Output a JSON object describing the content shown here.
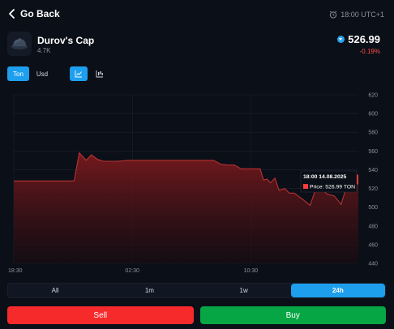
{
  "header": {
    "back_label": "Go Back",
    "back_icon": "chevron-left-icon",
    "time_label": "18:00 UTC+1",
    "time_icon": "alarm-clock-icon"
  },
  "asset": {
    "name": "Durov's Cap",
    "count": "4.7K",
    "icon": "cap-icon",
    "price": "526.99",
    "currency_icon": "ton-coin-icon",
    "change": "-0.19%"
  },
  "currency_toggle": [
    {
      "label": "Ton",
      "active": true
    },
    {
      "label": "Usd",
      "active": false
    }
  ],
  "chart_type_toggle": [
    {
      "icon": "line-chart-icon",
      "active": true
    },
    {
      "icon": "candlestick-chart-icon",
      "active": false
    }
  ],
  "chart_data": {
    "type": "area",
    "x_tick_labels": [
      "18:30",
      "02:30",
      "10:30"
    ],
    "y_tick_labels": [
      "620",
      "600",
      "580",
      "560",
      "540",
      "520",
      "500",
      "480",
      "460",
      "440"
    ],
    "ylim": [
      440,
      620
    ],
    "xlim": [
      0,
      100
    ],
    "x_ticks": [
      0,
      34.4,
      68.8
    ],
    "x": [
      0,
      6,
      12,
      17.5,
      19,
      21,
      22.5,
      24.3,
      26,
      28,
      30,
      33,
      36,
      40,
      44,
      48,
      52,
      54,
      58,
      60,
      62,
      64,
      66,
      68,
      70,
      71.5,
      72.5,
      73.5,
      74.5,
      75.8,
      77,
      78.6,
      80,
      81.4,
      82.5,
      84,
      86,
      87.7,
      89,
      91,
      93,
      95,
      96.5,
      98,
      99.2,
      100
    ],
    "values": [
      528,
      528,
      528,
      528,
      558,
      550,
      556,
      551,
      549,
      549,
      549,
      550,
      550,
      550,
      550,
      550,
      550,
      550,
      550,
      546,
      545,
      545,
      541,
      541,
      541,
      541,
      529,
      530,
      526,
      531,
      518,
      520,
      515,
      515,
      512,
      508,
      502,
      520,
      520,
      514,
      512,
      503,
      521,
      528,
      526.99,
      526.99
    ],
    "colors": {
      "line": "#b83232",
      "fill_top": "#7a1a1e",
      "fill_bottom": "#1a0b10",
      "grid": "#1c232f",
      "tick": "#8a93a3"
    },
    "grid": true,
    "tooltip": {
      "date": "18:00 14.08.2025",
      "label": "Price: 526.99 TON",
      "swatch_color": "#ff3b3b"
    }
  },
  "range_tabs": [
    {
      "label": "All",
      "active": false
    },
    {
      "label": "1m",
      "active": false
    },
    {
      "label": "1w",
      "active": false
    },
    {
      "label": "24h",
      "active": true
    }
  ],
  "actions": {
    "sell_label": "Sell",
    "buy_label": "Buy"
  }
}
